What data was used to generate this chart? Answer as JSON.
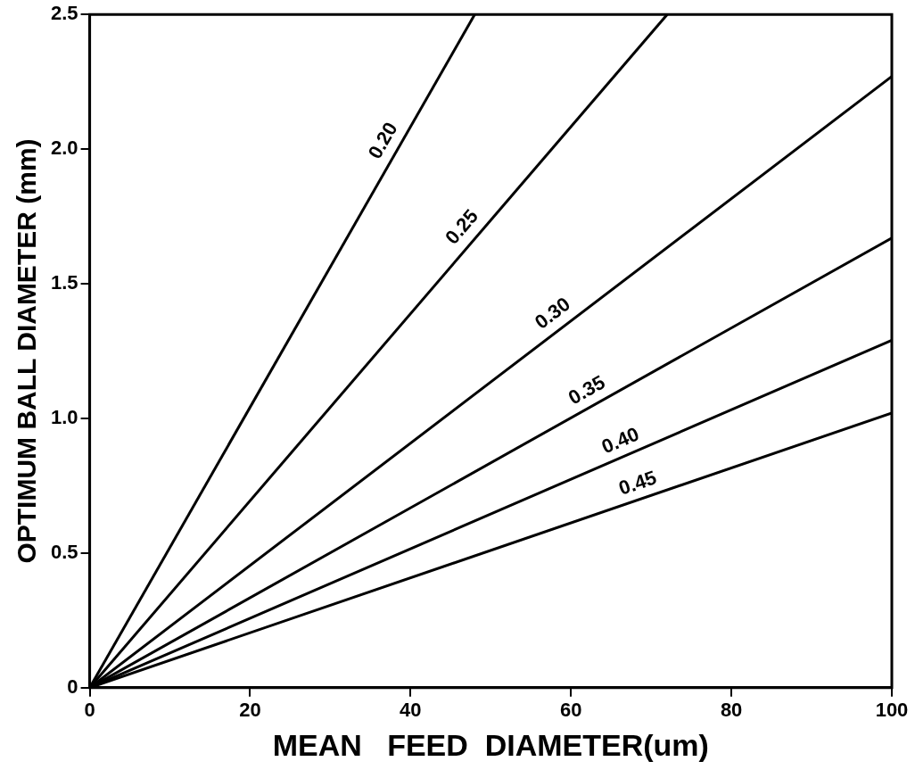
{
  "chart_data": {
    "type": "line",
    "xlabel": "MEAN   FEED  DIAMETER(um)",
    "ylabel": "OPTIMUM BALL DIAMETER (mm)",
    "xlim": [
      0,
      100
    ],
    "xticks": [
      0,
      20,
      40,
      60,
      80,
      100
    ],
    "ylim": [
      0,
      2.5
    ],
    "yticks": [
      0,
      {
        "value": 0.5,
        "label": "0.5"
      },
      {
        "value": 1,
        "label": "1.0"
      },
      {
        "value": 1.5,
        "label": "1.5"
      },
      {
        "value": 2,
        "label": "2.0"
      },
      {
        "value": 2.5,
        "label": "2.5"
      }
    ],
    "series": [
      {
        "color": "#000000",
        "x": [
          0,
          48
        ],
        "values": [
          0,
          2.5
        ]
      },
      {
        "color": "#000000",
        "x": [
          0,
          72
        ],
        "values": [
          0,
          2.5
        ]
      },
      {
        "color": "#000000",
        "x": [
          0,
          100
        ],
        "values": [
          0,
          2.27
        ]
      },
      {
        "color": "#000000",
        "x": [
          0,
          100
        ],
        "values": [
          0,
          1.67
        ]
      },
      {
        "color": "#000000",
        "x": [
          0,
          100
        ],
        "values": [
          0,
          1.29
        ]
      },
      {
        "color": "#000000",
        "x": [
          0,
          100
        ],
        "values": [
          0,
          1.02
        ]
      }
    ],
    "annotations": [
      {
        "text": "0.20",
        "x": 38.4,
        "y": 2.0
      },
      {
        "text": "0.25",
        "x": 48,
        "y": 1.67
      },
      {
        "text": "0.30",
        "x": 59,
        "y": 1.34
      },
      {
        "text": "0.35",
        "x": 63,
        "y": 1.05
      },
      {
        "text": "0.40",
        "x": 67,
        "y": 0.86
      },
      {
        "text": "0.45",
        "x": 69,
        "y": 0.7
      }
    ],
    "grid": false,
    "legend": false,
    "marker": "none",
    "line_style": "solid"
  }
}
